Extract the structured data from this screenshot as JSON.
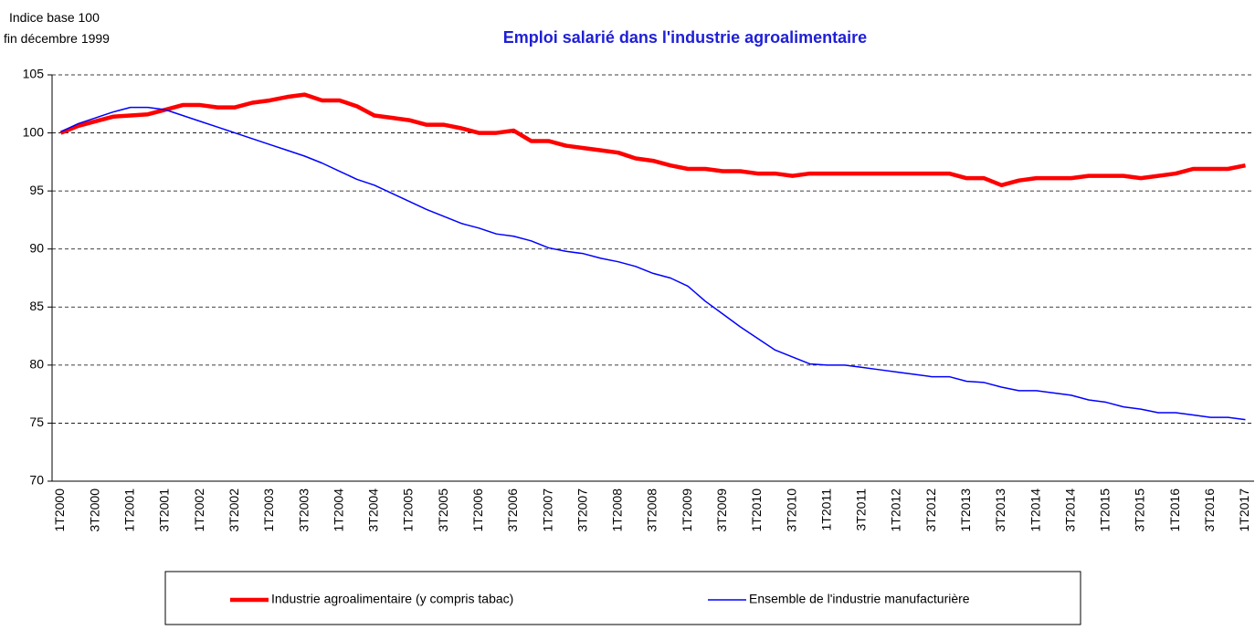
{
  "chart_data": {
    "type": "line",
    "title": "Emploi salarié dans l'industrie agroalimentaire",
    "y_label": [
      "Indice base 100",
      "fin décembre 1999"
    ],
    "categories": [
      "1T2000",
      null,
      "3T2000",
      null,
      "1T2001",
      null,
      "3T2001",
      null,
      "1T2002",
      null,
      "3T2002",
      null,
      "1T2003",
      null,
      "3T2003",
      null,
      "1T2004",
      null,
      "3T2004",
      null,
      "1T2005",
      null,
      "3T2005",
      null,
      "1T2006",
      null,
      "3T2006",
      null,
      "1T2007",
      null,
      "3T2007",
      null,
      "1T2008",
      null,
      "3T2008",
      null,
      "1T2009",
      null,
      "3T2009",
      null,
      "1T2010",
      null,
      "3T2010",
      null,
      "1T2011",
      null,
      "3T2011",
      null,
      "1T2012",
      null,
      "3T2012",
      null,
      "1T2013",
      null,
      "3T2013",
      null,
      "1T2014",
      null,
      "3T2014",
      null,
      "1T2015",
      null,
      "3T2015",
      null,
      "1T2016",
      null,
      "3T2016",
      null,
      "1T2017"
    ],
    "series": [
      {
        "name": "Industrie agroalimentaire (y compris tabac)",
        "color": "#ff0000",
        "width": 4.5,
        "values": [
          100.0,
          100.6,
          101.0,
          101.4,
          101.5,
          101.6,
          102.0,
          102.4,
          102.4,
          102.2,
          102.2,
          102.6,
          102.8,
          103.1,
          103.3,
          102.8,
          102.8,
          102.3,
          101.5,
          101.3,
          101.1,
          100.7,
          100.7,
          100.4,
          100.0,
          100.0,
          100.2,
          99.3,
          99.3,
          98.9,
          98.7,
          98.5,
          98.3,
          97.8,
          97.6,
          97.2,
          96.9,
          96.9,
          96.7,
          96.7,
          96.5,
          96.5,
          96.3,
          96.5,
          96.5,
          96.5,
          96.5,
          96.5,
          96.5,
          96.5,
          96.5,
          96.5,
          96.1,
          96.1,
          95.5,
          95.9,
          96.1,
          96.1,
          96.1,
          96.3,
          96.3,
          96.3,
          96.1,
          96.3,
          96.5,
          96.9,
          96.9,
          96.9,
          97.2
        ]
      },
      {
        "name": "Ensemble de l'industrie manufacturière",
        "color": "#0000ff",
        "width": 1.5,
        "values": [
          100.1,
          100.8,
          101.3,
          101.8,
          102.2,
          102.2,
          102.0,
          101.5,
          101.0,
          100.5,
          100.0,
          99.5,
          99.0,
          98.5,
          98.0,
          97.4,
          96.7,
          96.0,
          95.5,
          94.8,
          94.1,
          93.4,
          92.8,
          92.2,
          91.8,
          91.3,
          91.1,
          90.7,
          90.1,
          89.8,
          89.6,
          89.2,
          88.9,
          88.5,
          87.9,
          87.5,
          86.8,
          85.5,
          84.4,
          83.3,
          82.3,
          81.3,
          80.7,
          80.1,
          80.0,
          80.0,
          79.8,
          79.6,
          79.4,
          79.2,
          79.0,
          79.0,
          78.6,
          78.5,
          78.1,
          77.8,
          77.8,
          77.6,
          77.4,
          77.0,
          76.8,
          76.4,
          76.2,
          75.9,
          75.9,
          75.7,
          75.5,
          75.5,
          75.3
        ]
      }
    ],
    "ylim": [
      70,
      105
    ],
    "yticks": [
      70,
      75,
      80,
      85,
      90,
      95,
      100,
      105
    ],
    "grid": true,
    "legend": "bottom"
  }
}
